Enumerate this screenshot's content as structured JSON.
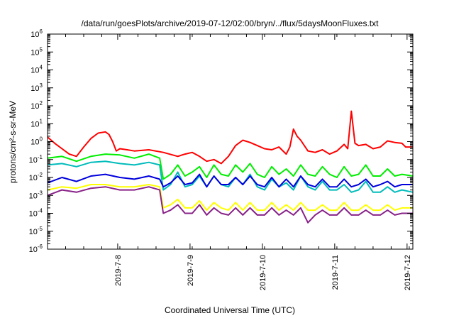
{
  "chart_data": {
    "type": "line",
    "title": "/data/run/goesPlots/archive/2019-07-12/02:00/bryn/../flux/5daysMoonFluxes.txt",
    "xlabel": "Coordinated Universal Time (UTC)",
    "ylabel": "protons/cm²-s-sr-MeV",
    "y_scale": "log",
    "ylim": [
      1e-06,
      1000000.0
    ],
    "y_ticks": [
      {
        "base": "10",
        "exp": "-6"
      },
      {
        "base": "10",
        "exp": "-5"
      },
      {
        "base": "10",
        "exp": "-4"
      },
      {
        "base": "10",
        "exp": "-3"
      },
      {
        "base": "10",
        "exp": "-2"
      },
      {
        "base": "10",
        "exp": "-1"
      },
      {
        "base": "10",
        "exp": "0"
      },
      {
        "base": "10",
        "exp": "1"
      },
      {
        "base": "10",
        "exp": "2"
      },
      {
        "base": "10",
        "exp": "3"
      },
      {
        "base": "10",
        "exp": "4"
      },
      {
        "base": "10",
        "exp": "5"
      },
      {
        "base": "10",
        "exp": "6"
      }
    ],
    "x_unit": "days",
    "xlim": [
      0,
      5.05
    ],
    "x_ticks": [
      {
        "label": "2019-7-8",
        "x": 0.97
      },
      {
        "label": "2019-7-9",
        "x": 1.97
      },
      {
        "label": "2019-7-10",
        "x": 2.97
      },
      {
        "label": "2019-7-11",
        "x": 3.97
      },
      {
        "label": "2019-7-12",
        "x": 4.97
      }
    ],
    "grid": false,
    "series": [
      {
        "color": "#ff0000",
        "points": [
          [
            0,
            1.8
          ],
          [
            0.1,
            0.8
          ],
          [
            0.2,
            0.4
          ],
          [
            0.3,
            0.2
          ],
          [
            0.4,
            0.15
          ],
          [
            0.5,
            0.5
          ],
          [
            0.6,
            1.5
          ],
          [
            0.7,
            3
          ],
          [
            0.8,
            3.5
          ],
          [
            0.85,
            2.5
          ],
          [
            0.9,
            1
          ],
          [
            0.95,
            0.3
          ],
          [
            1.0,
            0.4
          ],
          [
            1.1,
            0.35
          ],
          [
            1.2,
            0.3
          ],
          [
            1.4,
            0.35
          ],
          [
            1.6,
            0.25
          ],
          [
            1.8,
            0.15
          ],
          [
            1.9,
            0.2
          ],
          [
            2.0,
            0.25
          ],
          [
            2.1,
            0.15
          ],
          [
            2.2,
            0.08
          ],
          [
            2.3,
            0.1
          ],
          [
            2.4,
            0.06
          ],
          [
            2.5,
            0.15
          ],
          [
            2.6,
            0.6
          ],
          [
            2.7,
            1.2
          ],
          [
            2.8,
            0.9
          ],
          [
            2.9,
            0.6
          ],
          [
            3.0,
            0.4
          ],
          [
            3.1,
            0.35
          ],
          [
            3.2,
            0.5
          ],
          [
            3.3,
            0.2
          ],
          [
            3.35,
            0.5
          ],
          [
            3.4,
            5
          ],
          [
            3.45,
            2
          ],
          [
            3.5,
            1.2
          ],
          [
            3.6,
            0.3
          ],
          [
            3.7,
            0.25
          ],
          [
            3.8,
            0.35
          ],
          [
            3.9,
            0.2
          ],
          [
            4.0,
            0.3
          ],
          [
            4.1,
            0.7
          ],
          [
            4.15,
            0.4
          ],
          [
            4.2,
            50
          ],
          [
            4.25,
            0.8
          ],
          [
            4.3,
            0.6
          ],
          [
            4.4,
            0.7
          ],
          [
            4.5,
            0.4
          ],
          [
            4.6,
            0.5
          ],
          [
            4.7,
            1.1
          ],
          [
            4.8,
            0.9
          ],
          [
            4.9,
            0.8
          ],
          [
            4.95,
            0.5
          ],
          [
            5.05,
            0.5
          ]
        ]
      },
      {
        "color": "#00ee00",
        "points": [
          [
            0,
            0.12
          ],
          [
            0.2,
            0.15
          ],
          [
            0.4,
            0.08
          ],
          [
            0.6,
            0.15
          ],
          [
            0.8,
            0.2
          ],
          [
            1.0,
            0.18
          ],
          [
            1.2,
            0.12
          ],
          [
            1.4,
            0.2
          ],
          [
            1.55,
            0.12
          ],
          [
            1.6,
            0.008
          ],
          [
            1.7,
            0.015
          ],
          [
            1.8,
            0.05
          ],
          [
            1.9,
            0.012
          ],
          [
            2.0,
            0.02
          ],
          [
            2.1,
            0.04
          ],
          [
            2.2,
            0.01
          ],
          [
            2.3,
            0.05
          ],
          [
            2.4,
            0.015
          ],
          [
            2.5,
            0.012
          ],
          [
            2.6,
            0.05
          ],
          [
            2.7,
            0.02
          ],
          [
            2.8,
            0.06
          ],
          [
            2.9,
            0.015
          ],
          [
            3.0,
            0.01
          ],
          [
            3.1,
            0.04
          ],
          [
            3.2,
            0.015
          ],
          [
            3.3,
            0.03
          ],
          [
            3.4,
            0.012
          ],
          [
            3.5,
            0.05
          ],
          [
            3.6,
            0.015
          ],
          [
            3.7,
            0.012
          ],
          [
            3.8,
            0.04
          ],
          [
            3.9,
            0.015
          ],
          [
            4.0,
            0.01
          ],
          [
            4.1,
            0.04
          ],
          [
            4.2,
            0.012
          ],
          [
            4.3,
            0.015
          ],
          [
            4.4,
            0.05
          ],
          [
            4.5,
            0.012
          ],
          [
            4.6,
            0.012
          ],
          [
            4.7,
            0.03
          ],
          [
            4.8,
            0.012
          ],
          [
            4.9,
            0.015
          ],
          [
            5.05,
            0.012
          ]
        ]
      },
      {
        "color": "#00bbbb",
        "points": [
          [
            0,
            0.05
          ],
          [
            0.2,
            0.06
          ],
          [
            0.4,
            0.04
          ],
          [
            0.6,
            0.07
          ],
          [
            0.8,
            0.08
          ],
          [
            1.0,
            0.06
          ],
          [
            1.2,
            0.05
          ],
          [
            1.4,
            0.07
          ],
          [
            1.55,
            0.05
          ],
          [
            1.6,
            0.002
          ],
          [
            1.7,
            0.004
          ],
          [
            1.8,
            0.02
          ],
          [
            1.9,
            0.003
          ],
          [
            2.0,
            0.004
          ],
          [
            2.1,
            0.012
          ],
          [
            2.2,
            0.003
          ],
          [
            2.3,
            0.012
          ],
          [
            2.4,
            0.004
          ],
          [
            2.5,
            0.003
          ],
          [
            2.6,
            0.01
          ],
          [
            2.7,
            0.004
          ],
          [
            2.8,
            0.015
          ],
          [
            2.9,
            0.003
          ],
          [
            3.0,
            0.002
          ],
          [
            3.1,
            0.008
          ],
          [
            3.2,
            0.003
          ],
          [
            3.3,
            0.005
          ],
          [
            3.4,
            0.002
          ],
          [
            3.5,
            0.012
          ],
          [
            3.6,
            0.003
          ],
          [
            3.7,
            0.002
          ],
          [
            3.8,
            0.006
          ],
          [
            3.9,
            0.002
          ],
          [
            4.0,
            0.002
          ],
          [
            4.1,
            0.004
          ],
          [
            4.2,
            0.0015
          ],
          [
            4.3,
            0.002
          ],
          [
            4.4,
            0.006
          ],
          [
            4.5,
            0.0015
          ],
          [
            4.6,
            0.0015
          ],
          [
            4.7,
            0.003
          ],
          [
            4.8,
            0.0015
          ],
          [
            4.9,
            0.002
          ],
          [
            5.05,
            0.0015
          ]
        ]
      },
      {
        "color": "#0000dd",
        "points": [
          [
            0,
            0.005
          ],
          [
            0.2,
            0.01
          ],
          [
            0.4,
            0.006
          ],
          [
            0.6,
            0.012
          ],
          [
            0.8,
            0.015
          ],
          [
            1.0,
            0.01
          ],
          [
            1.2,
            0.008
          ],
          [
            1.4,
            0.012
          ],
          [
            1.55,
            0.008
          ],
          [
            1.6,
            0.003
          ],
          [
            1.7,
            0.005
          ],
          [
            1.8,
            0.012
          ],
          [
            1.9,
            0.004
          ],
          [
            2.0,
            0.005
          ],
          [
            2.1,
            0.015
          ],
          [
            2.2,
            0.003
          ],
          [
            2.3,
            0.012
          ],
          [
            2.4,
            0.004
          ],
          [
            2.5,
            0.004
          ],
          [
            2.6,
            0.01
          ],
          [
            2.7,
            0.004
          ],
          [
            2.8,
            0.012
          ],
          [
            2.9,
            0.004
          ],
          [
            3.0,
            0.003
          ],
          [
            3.1,
            0.01
          ],
          [
            3.2,
            0.003
          ],
          [
            3.3,
            0.008
          ],
          [
            3.4,
            0.003
          ],
          [
            3.5,
            0.012
          ],
          [
            3.6,
            0.004
          ],
          [
            3.7,
            0.003
          ],
          [
            3.8,
            0.008
          ],
          [
            3.9,
            0.003
          ],
          [
            4.0,
            0.003
          ],
          [
            4.1,
            0.008
          ],
          [
            4.2,
            0.003
          ],
          [
            4.3,
            0.004
          ],
          [
            4.4,
            0.008
          ],
          [
            4.5,
            0.003
          ],
          [
            4.6,
            0.004
          ],
          [
            4.7,
            0.006
          ],
          [
            4.8,
            0.003
          ],
          [
            4.9,
            0.004
          ],
          [
            5.05,
            0.004
          ]
        ]
      },
      {
        "color": "#ffff00",
        "points": [
          [
            0,
            0.002
          ],
          [
            0.2,
            0.003
          ],
          [
            0.4,
            0.0025
          ],
          [
            0.6,
            0.004
          ],
          [
            0.8,
            0.004
          ],
          [
            1.0,
            0.003
          ],
          [
            1.2,
            0.003
          ],
          [
            1.4,
            0.004
          ],
          [
            1.55,
            0.003
          ],
          [
            1.6,
            0.0002
          ],
          [
            1.7,
            0.0003
          ],
          [
            1.8,
            0.0006
          ],
          [
            1.9,
            0.0002
          ],
          [
            2.0,
            0.0002
          ],
          [
            2.1,
            0.0005
          ],
          [
            2.2,
            0.00015
          ],
          [
            2.3,
            0.0004
          ],
          [
            2.4,
            0.0002
          ],
          [
            2.5,
            0.00015
          ],
          [
            2.6,
            0.0004
          ],
          [
            2.7,
            0.00015
          ],
          [
            2.8,
            0.0004
          ],
          [
            2.9,
            0.00015
          ],
          [
            3.0,
            0.00015
          ],
          [
            3.1,
            0.0004
          ],
          [
            3.2,
            0.00015
          ],
          [
            3.3,
            0.0003
          ],
          [
            3.4,
            0.00015
          ],
          [
            3.5,
            0.0004
          ],
          [
            3.6,
            0.00015
          ],
          [
            3.7,
            0.00015
          ],
          [
            3.8,
            0.0003
          ],
          [
            3.9,
            0.00015
          ],
          [
            4.0,
            0.00015
          ],
          [
            4.1,
            0.0004
          ],
          [
            4.2,
            0.00015
          ],
          [
            4.3,
            0.00015
          ],
          [
            4.4,
            0.0003
          ],
          [
            4.5,
            0.00015
          ],
          [
            4.6,
            0.00015
          ],
          [
            4.7,
            0.0003
          ],
          [
            4.8,
            0.00015
          ],
          [
            4.9,
            0.0002
          ],
          [
            5.05,
            0.0002
          ]
        ]
      },
      {
        "color": "#882288",
        "points": [
          [
            0,
            0.001
          ],
          [
            0.2,
            0.002
          ],
          [
            0.4,
            0.0015
          ],
          [
            0.6,
            0.0025
          ],
          [
            0.8,
            0.003
          ],
          [
            1.0,
            0.002
          ],
          [
            1.2,
            0.002
          ],
          [
            1.4,
            0.003
          ],
          [
            1.55,
            0.002
          ],
          [
            1.6,
            0.0001
          ],
          [
            1.7,
            0.00015
          ],
          [
            1.8,
            0.0003
          ],
          [
            1.9,
            0.0001
          ],
          [
            2.0,
            0.0001
          ],
          [
            2.1,
            0.0003
          ],
          [
            2.2,
            8e-05
          ],
          [
            2.3,
            0.0002
          ],
          [
            2.4,
            0.0001
          ],
          [
            2.5,
            8e-05
          ],
          [
            2.6,
            0.0002
          ],
          [
            2.7,
            8e-05
          ],
          [
            2.8,
            0.0002
          ],
          [
            2.9,
            8e-05
          ],
          [
            3.0,
            8e-05
          ],
          [
            3.1,
            0.0002
          ],
          [
            3.2,
            8e-05
          ],
          [
            3.3,
            0.00015
          ],
          [
            3.4,
            8e-05
          ],
          [
            3.5,
            0.0002
          ],
          [
            3.6,
            3e-05
          ],
          [
            3.7,
            8e-05
          ],
          [
            3.8,
            0.00015
          ],
          [
            3.9,
            8e-05
          ],
          [
            4.0,
            8e-05
          ],
          [
            4.1,
            0.0002
          ],
          [
            4.2,
            8e-05
          ],
          [
            4.3,
            8e-05
          ],
          [
            4.4,
            0.00015
          ],
          [
            4.5,
            8e-05
          ],
          [
            4.6,
            8e-05
          ],
          [
            4.7,
            0.00015
          ],
          [
            4.8,
            8e-05
          ],
          [
            4.9,
            0.0001
          ],
          [
            5.05,
            0.0001
          ]
        ]
      }
    ]
  }
}
